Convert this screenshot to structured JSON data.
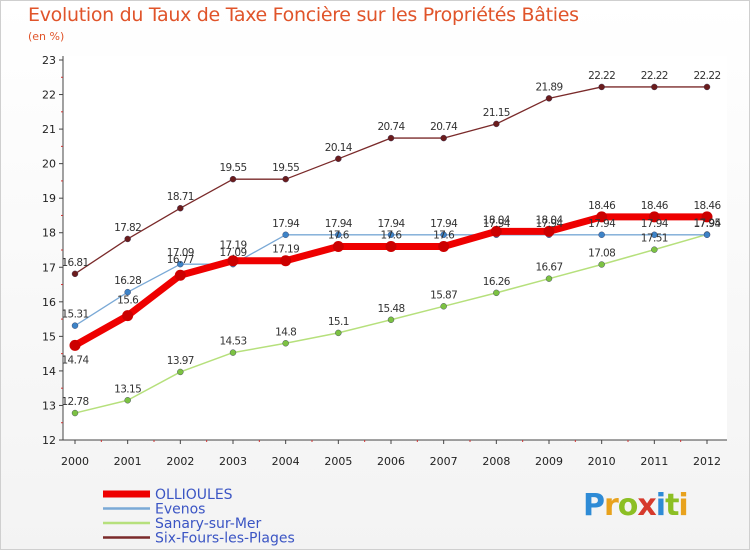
{
  "title": "Evolution du Taux de Taxe Foncière sur les Propriétés Bâties",
  "unit": "(en %)",
  "logo": {
    "text": "Proxiti",
    "letter_colors": [
      "#2e8bd6",
      "#e8a21d",
      "#8cbf24",
      "#d63a2c",
      "#2e8bd6",
      "#8cbf24",
      "#e8a21d"
    ]
  },
  "chart_data": {
    "type": "line",
    "title": "Evolution du Taux de Taxe Foncière sur les Propriétés Bâties",
    "ylabel": "(en %)",
    "xlabel": "",
    "x": [
      "2000",
      "2001",
      "2002",
      "2003",
      "2004",
      "2005",
      "2006",
      "2007",
      "2008",
      "2009",
      "2010",
      "2011",
      "2012"
    ],
    "ylim": [
      12,
      23
    ],
    "yticks": [
      12,
      13,
      14,
      15,
      16,
      17,
      18,
      19,
      20,
      21,
      22,
      23
    ],
    "grid": false,
    "legend_position": "bottom-left",
    "series": [
      {
        "name": "OLLIOULES",
        "color": "#ee0000",
        "marker": "#cc0000",
        "width": 7,
        "values": [
          14.74,
          15.6,
          16.77,
          17.19,
          17.19,
          17.6,
          17.6,
          17.6,
          18.04,
          18.04,
          18.46,
          18.46,
          18.46
        ],
        "labels": [
          "14.74",
          "15.6",
          "16.77",
          "17.19",
          "17.19",
          "17.6",
          "17.6",
          "17.6",
          "18.04",
          "18.04",
          "18.46",
          "18.46",
          "18.46"
        ]
      },
      {
        "name": "Evenos",
        "color": "#7aa9d6",
        "marker": "#3d83c7",
        "width": 1.3,
        "values": [
          15.31,
          16.28,
          17.09,
          17.09,
          17.94,
          17.94,
          17.94,
          17.94,
          17.94,
          17.94,
          17.94,
          17.94,
          17.94
        ],
        "labels": [
          "15.31",
          "16.28",
          "17.09",
          "17.09",
          "17.94",
          "17.94",
          "17.94",
          "17.94",
          "17.94",
          "17.94",
          "17.94",
          "17.94",
          "17.94"
        ]
      },
      {
        "name": "Sanary-sur-Mer",
        "color": "#b6e07c",
        "marker": "#7cc242",
        "width": 1.5,
        "values": [
          12.78,
          13.15,
          13.97,
          14.53,
          14.8,
          15.1,
          15.48,
          15.87,
          16.26,
          16.67,
          17.08,
          17.51,
          17.95
        ],
        "labels": [
          "12.78",
          "13.15",
          "13.97",
          "14.53",
          "14.8",
          "15.1",
          "15.48",
          "15.87",
          "16.26",
          "16.67",
          "17.08",
          "17.51",
          "17.95"
        ]
      },
      {
        "name": "Six-Fours-les-Plages",
        "color": "#7a2a2a",
        "marker": "#6b1c1c",
        "width": 1.3,
        "values": [
          16.81,
          17.82,
          18.71,
          19.55,
          19.55,
          20.14,
          20.74,
          20.74,
          21.15,
          21.89,
          22.22,
          22.22,
          22.22
        ],
        "labels": [
          "16.81",
          "17.82",
          "18.71",
          "19.55",
          "19.55",
          "20.14",
          "20.74",
          "20.74",
          "21.15",
          "21.89",
          "22.22",
          "22.22",
          "22.22"
        ]
      }
    ]
  }
}
